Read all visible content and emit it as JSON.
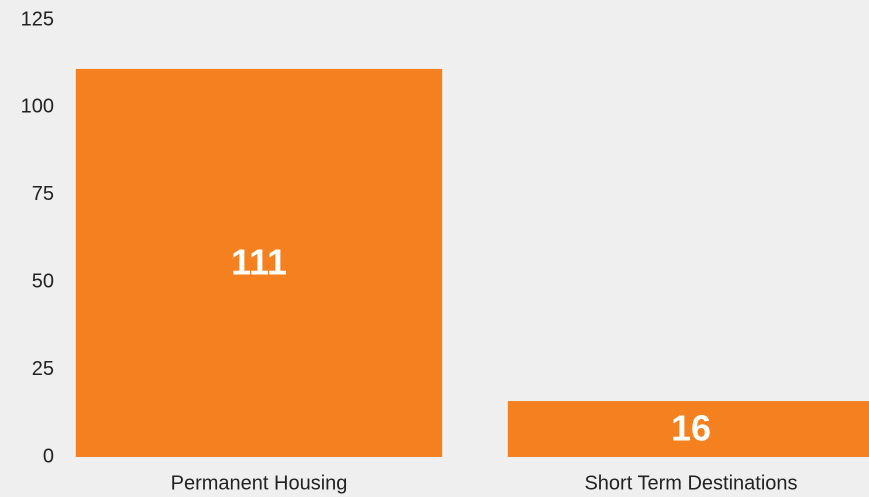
{
  "chart_data": {
    "type": "bar",
    "categories": [
      "Permanent Housing",
      "Short Term Destinations"
    ],
    "values": [
      111,
      16
    ],
    "color": "#f58020",
    "ylim": [
      0,
      125
    ],
    "yticks": [
      0,
      25,
      50,
      75,
      100,
      125
    ],
    "grid": false,
    "data_labels": true
  }
}
